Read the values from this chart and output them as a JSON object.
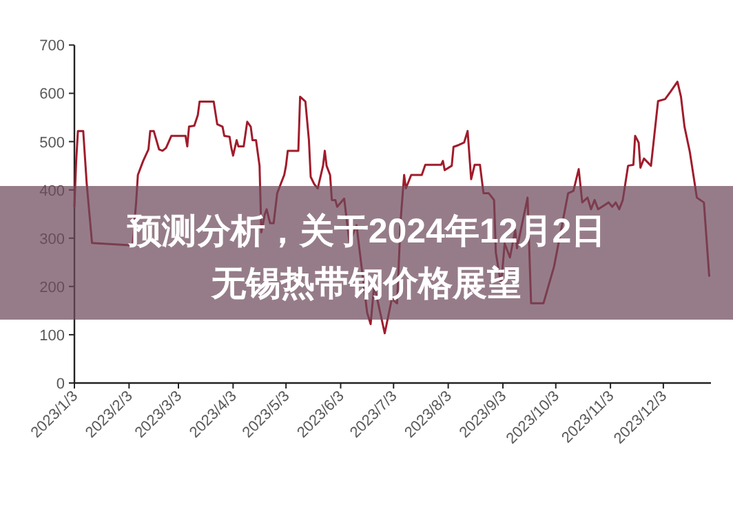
{
  "chart_data": {
    "type": "line",
    "title": "预测分析，关于2024年12月2日无锡热带钢价格展望",
    "x": [
      "2023-01-03",
      "2023-01-04",
      "2023-01-05",
      "2023-01-08",
      "2023-01-10",
      "2023-01-13",
      "2023-02-05",
      "2023-02-07",
      "2023-02-08",
      "2023-02-11",
      "2023-02-14",
      "2023-02-15",
      "2023-02-17",
      "2023-02-20",
      "2023-02-22",
      "2023-02-24",
      "2023-02-27",
      "2023-03-07",
      "2023-03-08",
      "2023-03-09",
      "2023-03-12",
      "2023-03-14",
      "2023-03-15",
      "2023-03-23",
      "2023-03-25",
      "2023-03-28",
      "2023-03-29",
      "2023-04-01",
      "2023-04-02",
      "2023-04-03",
      "2023-04-05",
      "2023-04-06",
      "2023-04-09",
      "2023-04-11",
      "2023-04-13",
      "2023-04-14",
      "2023-04-16",
      "2023-04-18",
      "2023-04-19",
      "2023-04-21",
      "2023-04-22",
      "2023-04-24",
      "2023-04-26",
      "2023-04-28",
      "2023-05-02",
      "2023-05-03",
      "2023-05-04",
      "2023-05-10",
      "2023-05-11",
      "2023-05-14",
      "2023-05-16",
      "2023-05-17",
      "2023-05-19",
      "2023-05-21",
      "2023-05-24",
      "2023-05-25",
      "2023-05-26",
      "2023-05-28",
      "2023-05-29",
      "2023-05-31",
      "2023-06-01",
      "2023-06-05",
      "2023-06-08",
      "2023-06-12",
      "2023-06-18",
      "2023-06-20",
      "2023-06-22",
      "2023-06-28",
      "2023-07-02",
      "2023-07-05",
      "2023-07-07",
      "2023-07-09",
      "2023-07-10",
      "2023-07-13",
      "2023-07-19",
      "2023-07-21",
      "2023-07-30",
      "2023-07-31",
      "2023-08-01",
      "2023-08-05",
      "2023-08-06",
      "2023-08-09",
      "2023-08-12",
      "2023-08-14",
      "2023-08-16",
      "2023-08-18",
      "2023-08-21",
      "2023-08-23",
      "2023-08-26",
      "2023-08-29",
      "2023-08-30",
      "2023-09-02",
      "2023-09-04",
      "2023-09-07",
      "2023-09-10",
      "2023-09-11",
      "2023-09-17",
      "2023-09-19",
      "2023-09-26",
      "2023-10-02",
      "2023-10-10",
      "2023-10-13",
      "2023-10-16",
      "2023-10-18",
      "2023-10-21",
      "2023-10-23",
      "2023-10-25",
      "2023-10-27",
      "2023-11-02",
      "2023-11-04",
      "2023-11-06",
      "2023-11-08",
      "2023-11-10",
      "2023-11-13",
      "2023-11-16",
      "2023-11-17",
      "2023-11-19",
      "2023-11-20",
      "2023-11-22",
      "2023-11-26",
      "2023-11-30",
      "2023-12-04",
      "2023-12-07",
      "2023-12-11",
      "2023-12-13",
      "2023-12-15",
      "2023-12-18",
      "2023-12-21",
      "2023-12-22",
      "2023-12-26",
      "2023-12-29"
    ],
    "series": [
      {
        "color": "#a01c2c",
        "values": [
          365,
          460,
          522,
          522,
          412,
          290,
          285,
          374,
          431,
          460,
          484,
          522,
          522,
          484,
          481,
          487,
          512,
          512,
          490,
          531,
          533,
          555,
          583,
          583,
          536,
          531,
          512,
          510,
          487,
          471,
          503,
          490,
          490,
          541,
          531,
          503,
          503,
          450,
          312,
          350,
          360,
          331,
          331,
          393,
          431,
          450,
          481,
          481,
          593,
          583,
          503,
          427,
          412,
          403,
          450,
          481,
          450,
          431,
          379,
          379,
          365,
          382,
          290,
          327,
          146,
          122,
          203,
          103,
          174,
          165,
          336,
          431,
          403,
          431,
          431,
          452,
          452,
          460,
          441,
          450,
          489,
          493,
          498,
          522,
          422,
          452,
          452,
          393,
          393,
          379,
          270,
          203,
          289,
          260,
          317,
          279,
          384,
          165,
          165,
          241,
          393,
          398,
          443,
          374,
          384,
          360,
          379,
          360,
          374,
          365,
          374,
          360,
          379,
          450,
          452,
          512,
          498,
          446,
          465,
          450,
          584,
          588,
          603,
          624,
          593,
          531,
          479,
          408,
          384,
          374,
          222
        ]
      }
    ],
    "xlim": [
      "2023-01-03",
      "2023-12-30"
    ],
    "xticks": [
      {
        "value": "2023-01-03",
        "label": "2023/1/3"
      },
      {
        "value": "2023-02-03",
        "label": "2023/2/3"
      },
      {
        "value": "2023-03-03",
        "label": "2023/3/3"
      },
      {
        "value": "2023-04-03",
        "label": "2023/4/3"
      },
      {
        "value": "2023-05-03",
        "label": "2023/5/3"
      },
      {
        "value": "2023-06-03",
        "label": "2023/6/3"
      },
      {
        "value": "2023-07-03",
        "label": "2023/7/3"
      },
      {
        "value": "2023-08-03",
        "label": "2023/8/3"
      },
      {
        "value": "2023-09-03",
        "label": "2023/9/3"
      },
      {
        "value": "2023-10-03",
        "label": "2023/10/3"
      },
      {
        "value": "2023-11-03",
        "label": "2023/11/3"
      },
      {
        "value": "2023-12-03",
        "label": "2023/12/3"
      }
    ],
    "ylim": [
      0,
      700
    ],
    "yticks": [
      0,
      100,
      200,
      300,
      400,
      500,
      600,
      700
    ],
    "grid": false,
    "marker": "none"
  }
}
